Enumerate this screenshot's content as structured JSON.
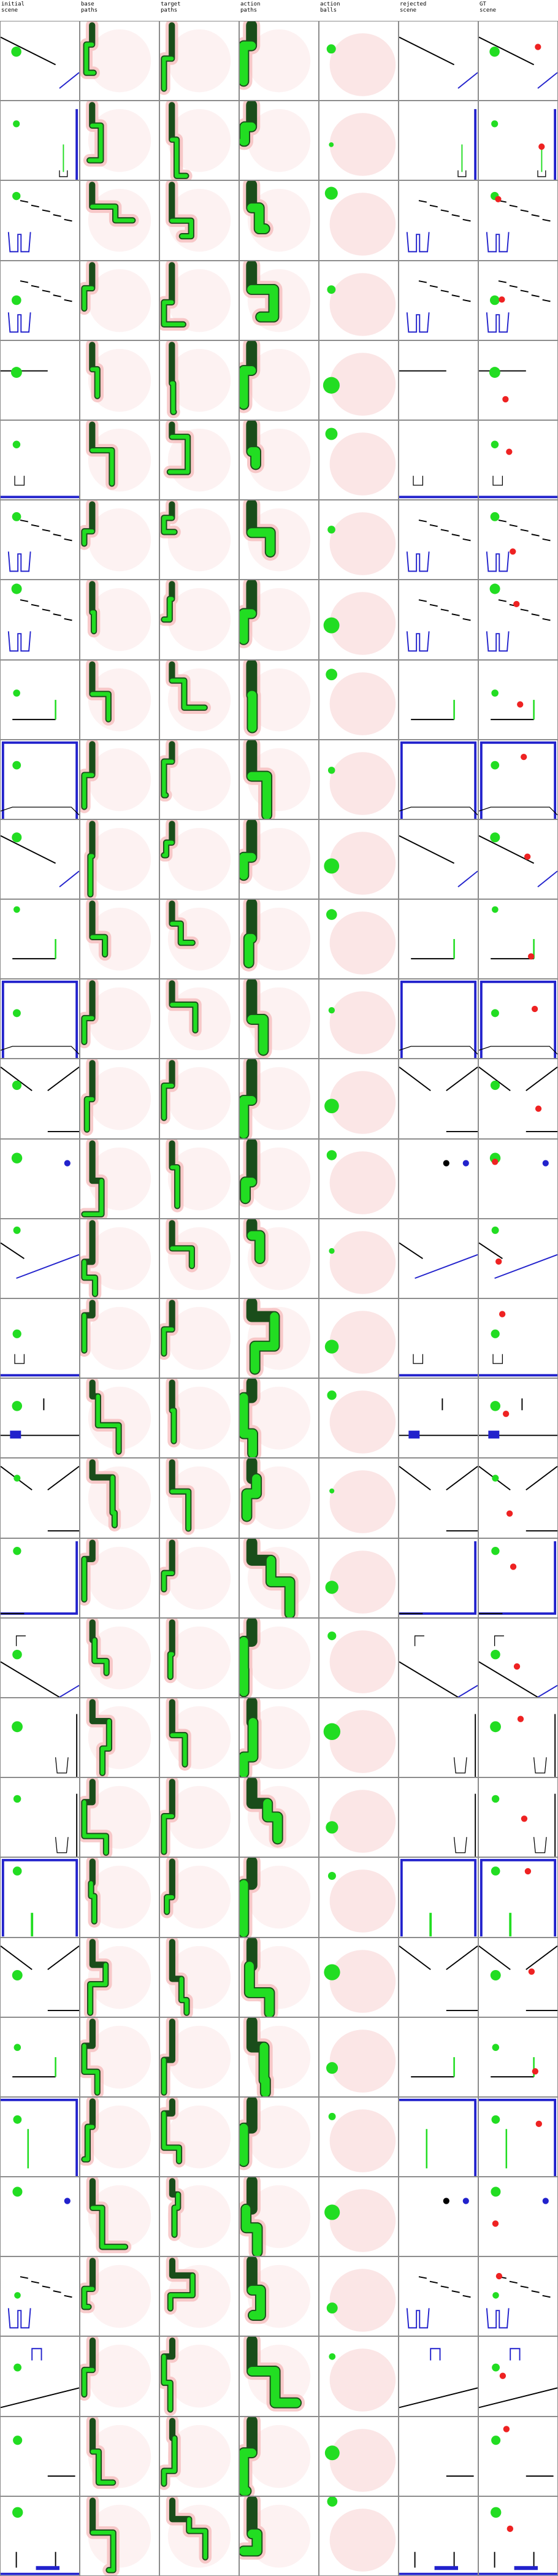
{
  "columns": [
    {
      "key": "initial",
      "label": "initial\nscene"
    },
    {
      "key": "base",
      "label": "base\npaths"
    },
    {
      "key": "target",
      "label": "target\npaths"
    },
    {
      "key": "action_paths",
      "label": "action\npaths"
    },
    {
      "key": "action_balls",
      "label": "action\nballs"
    },
    {
      "key": "rejected",
      "label": "rejected\nscene"
    },
    {
      "key": "gt",
      "label": "GT\nscene"
    }
  ],
  "colors": {
    "grid_line": "#8c8c8c",
    "green": "#22dd22",
    "red": "#ee2222",
    "blue": "#2222cc",
    "black": "#000000",
    "dark_green": "#1a4d1a",
    "heat_red": "#f4b6b6"
  },
  "scene_types": [
    "ramp",
    "stick_down",
    "staircase_cups",
    "staircase_cups",
    "flat_bar",
    "cup_floor",
    "staircase_cups",
    "staircase_cups",
    "bar_peg",
    "boxed_ball",
    "ramp",
    "bar_peg",
    "boxed_ball",
    "v_slopes",
    "two_balls",
    "ramp_long",
    "cup_floor",
    "step_platform",
    "v_slopes",
    "box_right",
    "wedge",
    "cup_right",
    "cup_right",
    "boxed_stick",
    "v_slopes",
    "bar_peg",
    "stick_box",
    "two_balls",
    "staircase_cups",
    "arch_bar",
    "bar_line",
    "bottom_boxed"
  ]
}
